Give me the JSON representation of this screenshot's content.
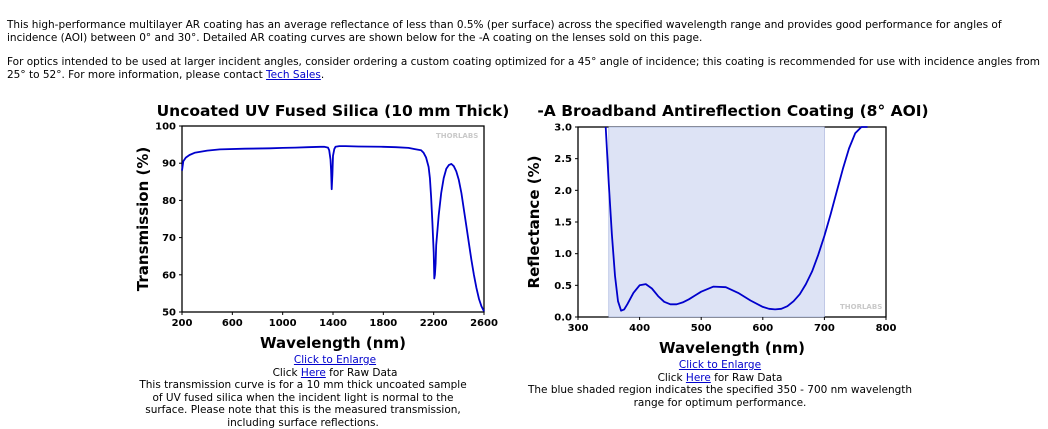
{
  "intro": {
    "p1": "This high-performance multilayer AR coating has an average reflectance of less than 0.5% (per surface) across the specified wavelength range and provides good performance for angles of incidence (AOI) between 0° and 30°. Detailed AR coating curves are shown below for the -A coating on the lenses sold on this page.",
    "p2_before": "For optics intended to be used at larger incident angles, consider ordering a custom coating optimized for a 45° angle of incidence; this coating is recommended for use with incidence angles from 25° to 52°. For more information, please contact ",
    "p2_link": "Tech Sales",
    "p2_after": "."
  },
  "left_caption": {
    "enlarge_link": "Click to Enlarge",
    "raw_prefix": "Click ",
    "raw_link": "Here",
    "raw_suffix": " for Raw Data",
    "description": "This transmission curve is for a 10 mm thick uncoated sample of UV fused silica when the incident light is normal to the surface. Please note that this is the measured transmission, including surface reflections."
  },
  "right_caption": {
    "enlarge_link": "Click to Enlarge",
    "raw_prefix": "Click ",
    "raw_link": "Here",
    "raw_suffix": " for Raw Data",
    "description": "The blue shaded region indicates the specified 350 - 700 nm wavelength range for optimum performance."
  },
  "colors": {
    "line": "#0000cc",
    "shade": "#dde3f5",
    "link": "#0000cc"
  },
  "chart_data": [
    {
      "type": "line",
      "title": "Uncoated UV Fused Silica (10 mm Thick)",
      "xlabel": "Wavelength (nm)",
      "ylabel": "Transmission (%)",
      "xlim": [
        200,
        2600
      ],
      "ylim": [
        50,
        100
      ],
      "xticks": [
        "200",
        "600",
        "1000",
        "1400",
        "1800",
        "2200",
        "2600"
      ],
      "yticks": [
        "50",
        "60",
        "70",
        "80",
        "90",
        "100"
      ],
      "watermark": "THORLABS",
      "series": [
        {
          "x": [
            200,
            210,
            230,
            260,
            300,
            400,
            500,
            700,
            900,
            1000,
            1100,
            1200,
            1300,
            1330,
            1360,
            1370,
            1380,
            1385,
            1390,
            1395,
            1400,
            1410,
            1420,
            1450,
            1500,
            1600,
            1800,
            1900,
            2000,
            2050,
            2100,
            2120,
            2140,
            2160,
            2170,
            2180,
            2190,
            2200,
            2205,
            2210,
            2215,
            2220,
            2240,
            2260,
            2280,
            2300,
            2320,
            2340,
            2360,
            2380,
            2400,
            2420,
            2440,
            2460,
            2480,
            2500,
            2520,
            2540,
            2560,
            2580,
            2600
          ],
          "y": [
            88,
            90.5,
            91.5,
            92.2,
            92.8,
            93.4,
            93.7,
            93.9,
            94,
            94.1,
            94.2,
            94.3,
            94.4,
            94.4,
            94.2,
            93.5,
            91,
            88,
            83,
            87,
            92,
            93.8,
            94.4,
            94.6,
            94.6,
            94.5,
            94.4,
            94.3,
            94.1,
            93.8,
            93.5,
            92.8,
            91.5,
            89,
            86,
            81,
            74,
            66,
            59,
            60,
            63,
            68,
            76,
            82,
            86,
            88.5,
            89.5,
            89.8,
            89.2,
            87.8,
            85.5,
            82,
            77.5,
            73,
            68.5,
            64,
            60,
            56.5,
            53.5,
            51.5,
            50.2
          ]
        }
      ]
    },
    {
      "type": "line",
      "title": "-A Broadband Antireflection Coating (8° AOI)",
      "xlabel": "Wavelength (nm)",
      "ylabel": "Reflectance (%)",
      "xlim": [
        300,
        800
      ],
      "ylim": [
        0,
        3
      ],
      "xticks": [
        "300",
        "400",
        "500",
        "600",
        "700",
        "800"
      ],
      "yticks": [
        "0.0",
        "0.5",
        "1.0",
        "1.5",
        "2.0",
        "2.5",
        "3.0"
      ],
      "shaded_range": [
        350,
        700
      ],
      "watermark": "THORLABS",
      "series": [
        {
          "x": [
            345,
            350,
            355,
            360,
            365,
            370,
            375,
            380,
            390,
            400,
            410,
            420,
            430,
            440,
            450,
            460,
            470,
            480,
            490,
            500,
            520,
            540,
            560,
            580,
            600,
            610,
            620,
            630,
            640,
            650,
            660,
            670,
            680,
            690,
            700,
            710,
            720,
            730,
            740,
            750,
            760,
            770
          ],
          "y": [
            3.0,
            2.1,
            1.3,
            0.65,
            0.25,
            0.1,
            0.12,
            0.2,
            0.38,
            0.5,
            0.52,
            0.45,
            0.33,
            0.24,
            0.2,
            0.2,
            0.23,
            0.28,
            0.34,
            0.4,
            0.48,
            0.47,
            0.38,
            0.26,
            0.16,
            0.13,
            0.12,
            0.13,
            0.17,
            0.25,
            0.36,
            0.52,
            0.72,
            0.98,
            1.28,
            1.62,
            1.98,
            2.34,
            2.66,
            2.9,
            3.0,
            3.0
          ]
        }
      ]
    }
  ]
}
